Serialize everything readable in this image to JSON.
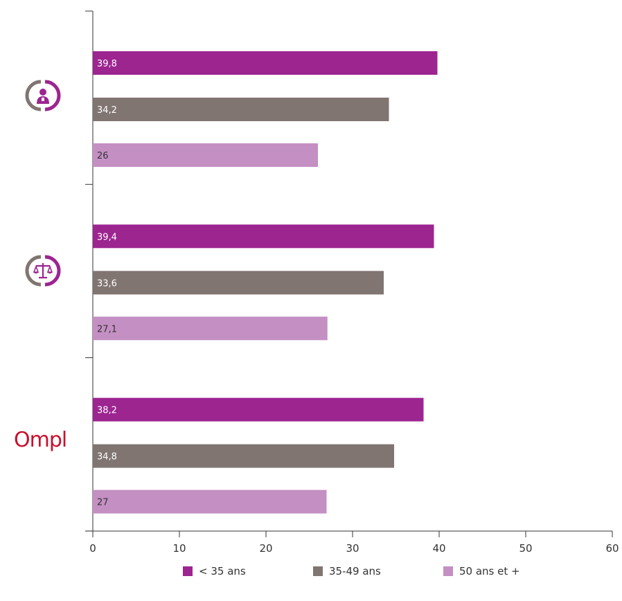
{
  "chart_data": {
    "type": "bar",
    "orientation": "horizontal",
    "categories": [
      "",
      "",
      ""
    ],
    "category_icons": [
      "person-badge-icon",
      "scales-of-justice-icon",
      "ompl-logo"
    ],
    "series": [
      {
        "name": "< 35 ans",
        "color": "#9c2590",
        "values": [
          39.8,
          39.4,
          38.2
        ],
        "labels": [
          "39,8",
          "39,4",
          "38,2"
        ]
      },
      {
        "name": "35-49 ans",
        "color": "#807571",
        "values": [
          34.2,
          33.6,
          34.8
        ],
        "labels": [
          "34,2",
          "33,6",
          "34,8"
        ]
      },
      {
        "name": "50 ans et +",
        "color": "#c48fc3",
        "values": [
          26,
          27.1,
          27
        ],
        "labels": [
          "26",
          "27,1",
          "27"
        ]
      }
    ],
    "xlim": [
      0,
      60
    ],
    "xticks": [
      "0",
      "10",
      "20",
      "30",
      "40",
      "50",
      "60"
    ],
    "grid": false,
    "legend_position": "bottom"
  },
  "logo": {
    "ompl_text": "Ompl"
  }
}
